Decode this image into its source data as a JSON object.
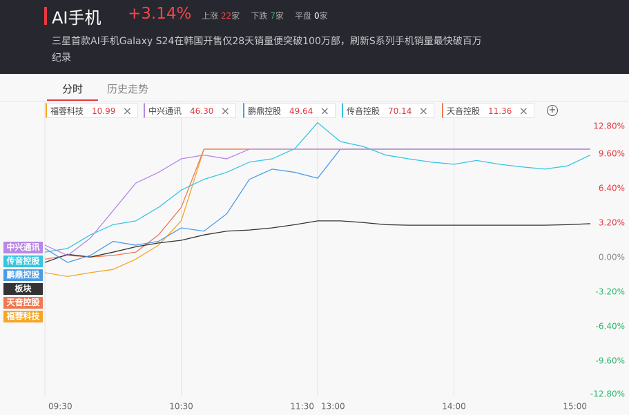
{
  "header": {
    "title": "AI手机",
    "change": "+3.14%",
    "stats": [
      {
        "label": "上涨",
        "count": 22,
        "unit": "家"
      },
      {
        "label": "下跌",
        "count": 7,
        "unit": "家"
      },
      {
        "label": "平盘",
        "count": 0,
        "unit": "家"
      }
    ],
    "description": "三星首款AI手机Galaxy S24在韩国开售仅28天销量便突破100万部，刷新S系列手机销量最快破百万纪录"
  },
  "tabs": [
    "分时",
    "历史走势"
  ],
  "stocks": [
    {
      "name": "福蓉科技",
      "price": "10.99",
      "color": "#f5a623"
    },
    {
      "name": "中兴通讯",
      "price": "46.30",
      "color": "#b987e6"
    },
    {
      "name": "鹏鼎控股",
      "price": "49.64",
      "color": "#4a9be6"
    },
    {
      "name": "传音控股",
      "price": "70.14",
      "color": "#36c5e0"
    },
    {
      "name": "天音控股",
      "price": "11.36",
      "color": "#f07850"
    }
  ],
  "chart_data": {
    "type": "line",
    "x": [
      "09:30",
      "09:40",
      "09:50",
      "10:00",
      "10:10",
      "10:20",
      "10:30",
      "10:40",
      "10:50",
      "11:00",
      "11:10",
      "11:20",
      "13:00",
      "13:10",
      "13:20",
      "13:30",
      "13:40",
      "13:50",
      "14:00",
      "14:10",
      "14:20",
      "14:30",
      "14:40",
      "14:50",
      "15:00"
    ],
    "xticks": [
      "09:30",
      "10:30",
      "11:30",
      "13:00",
      "14:00",
      "15:00"
    ],
    "ylim": [
      -12.8,
      12.8
    ],
    "yticks": [
      {
        "value": 12.8,
        "label": "12.80%"
      },
      {
        "value": 9.6,
        "label": "9.60%"
      },
      {
        "value": 6.4,
        "label": "6.40%"
      },
      {
        "value": 3.2,
        "label": "3.20%"
      },
      {
        "value": 0,
        "label": "0.00%"
      },
      {
        "value": -3.2,
        "label": "-3.20%"
      },
      {
        "value": -6.4,
        "label": "-6.40%"
      },
      {
        "value": -9.6,
        "label": "-9.60%"
      },
      {
        "value": -12.8,
        "label": "-12.80%"
      }
    ],
    "series": [
      {
        "name": "中兴通讯",
        "color": "#b987e6",
        "values": [
          1.15,
          0.2,
          1.8,
          4.35,
          6.9,
          7.9,
          9.15,
          9.5,
          9.15,
          10.05,
          10.05,
          10.05,
          10.05,
          10.05,
          10.05,
          10.05,
          10.05,
          10.05,
          10.05,
          10.05,
          10.05,
          10.05,
          10.05,
          10.05,
          10.05
        ]
      },
      {
        "name": "传音控股",
        "color": "#36c5e0",
        "values": [
          0.5,
          0.85,
          2.1,
          3.05,
          3.4,
          4.65,
          6.25,
          7.25,
          7.9,
          8.85,
          9.15,
          10.1,
          12.5,
          10.75,
          10.3,
          9.5,
          9.15,
          8.85,
          8.65,
          9.0,
          8.65,
          8.4,
          8.2,
          8.5,
          9.5
        ]
      },
      {
        "name": "鹏鼎控股",
        "color": "#4a9be6",
        "values": [
          0.85,
          -0.45,
          0.2,
          1.5,
          1.15,
          1.5,
          2.75,
          2.45,
          4.05,
          7.25,
          8.2,
          7.9,
          7.35,
          10.05,
          10.05,
          10.05,
          10.05,
          10.05,
          10.05,
          10.05,
          10.05,
          10.05,
          10.05,
          10.05,
          10.05
        ]
      },
      {
        "name": "板块",
        "color": "#333333",
        "values": [
          -0.45,
          0.3,
          0.05,
          0.5,
          1.0,
          1.35,
          1.6,
          2.1,
          2.45,
          2.55,
          2.75,
          3.05,
          3.4,
          3.4,
          3.25,
          3.05,
          3.0,
          3.0,
          3.0,
          3.0,
          3.0,
          3.0,
          3.0,
          3.05,
          3.14
        ]
      },
      {
        "name": "天音控股",
        "color": "#f07850",
        "values": [
          -0.15,
          0.2,
          0.05,
          0.2,
          0.5,
          2.1,
          4.65,
          10.05,
          10.05,
          10.05,
          10.05,
          10.05,
          10.05,
          10.05,
          10.05,
          10.05,
          10.05,
          10.05,
          10.05,
          10.05,
          10.05,
          10.05,
          10.05,
          10.05,
          10.05
        ]
      },
      {
        "name": "福蓉科技",
        "color": "#f5a623",
        "values": [
          -1.4,
          -1.75,
          -1.4,
          -1.1,
          -0.15,
          1.15,
          3.4,
          10.05,
          10.05,
          10.05,
          10.05,
          10.05,
          10.05,
          10.05,
          10.05,
          10.05,
          10.05,
          10.05,
          10.05,
          10.05,
          10.05,
          10.05,
          10.05,
          10.05,
          10.05
        ]
      }
    ]
  }
}
